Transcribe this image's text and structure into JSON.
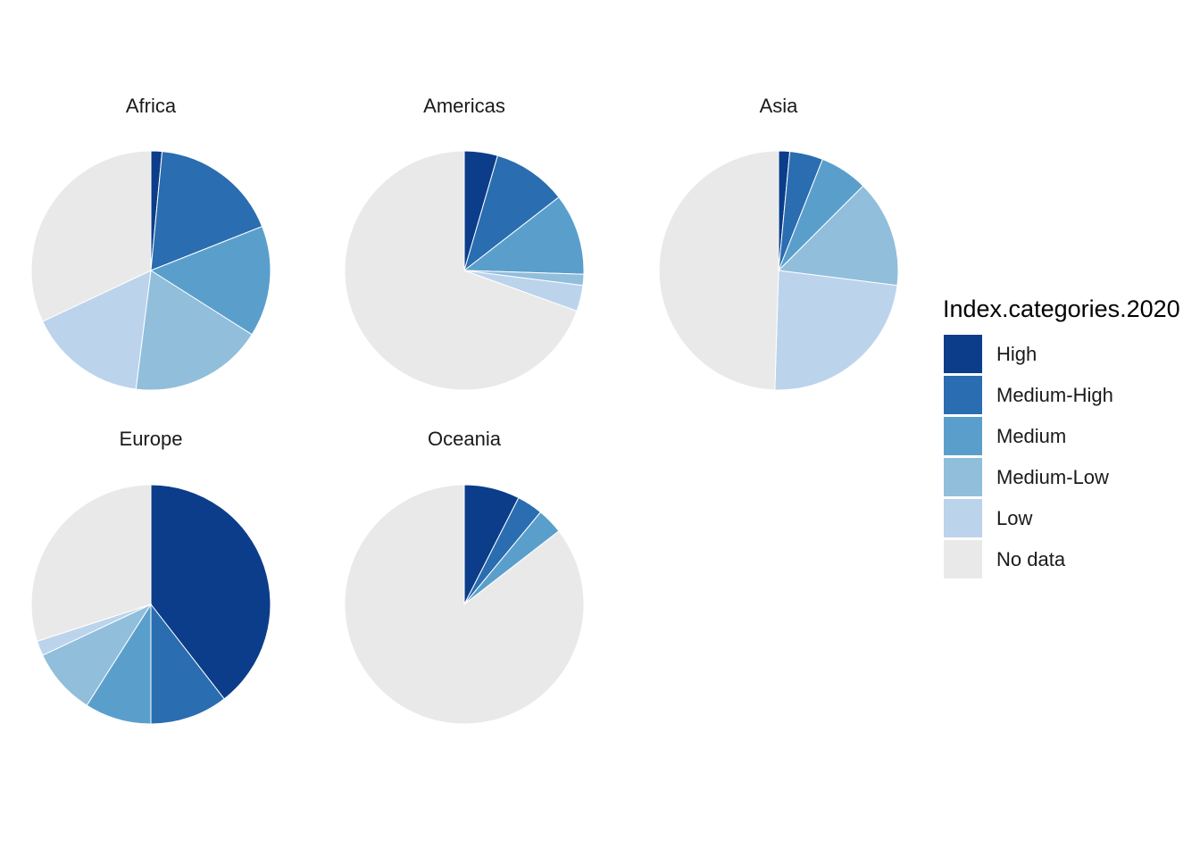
{
  "chart_data": {
    "type": "pie",
    "legend_title": "Index.categories.2020",
    "legend_position": "right",
    "categories": [
      "High",
      "Medium-High",
      "Medium",
      "Medium-Low",
      "Low",
      "No data"
    ],
    "colors": {
      "High": "#0c3d8a",
      "Medium-High": "#2a6db0",
      "Medium": "#5a9fcc",
      "Medium-Low": "#90bedb",
      "Low": "#bcd3ec",
      "No data": "#e9e9e9"
    },
    "panels": [
      {
        "title": "Africa",
        "values": [
          1.5,
          17.5,
          15.0,
          18.0,
          16.0,
          32.0
        ]
      },
      {
        "title": "Americas",
        "values": [
          4.5,
          10.0,
          11.0,
          1.5,
          3.5,
          69.5
        ]
      },
      {
        "title": "Asia",
        "values": [
          1.5,
          4.5,
          6.5,
          14.5,
          23.5,
          49.5
        ]
      },
      {
        "title": "Europe",
        "values": [
          39.5,
          10.5,
          9.0,
          9.0,
          2.0,
          30.0
        ]
      },
      {
        "title": "Oceania",
        "values": [
          7.5,
          3.5,
          3.5,
          0.0,
          0.0,
          85.5
        ]
      }
    ]
  }
}
